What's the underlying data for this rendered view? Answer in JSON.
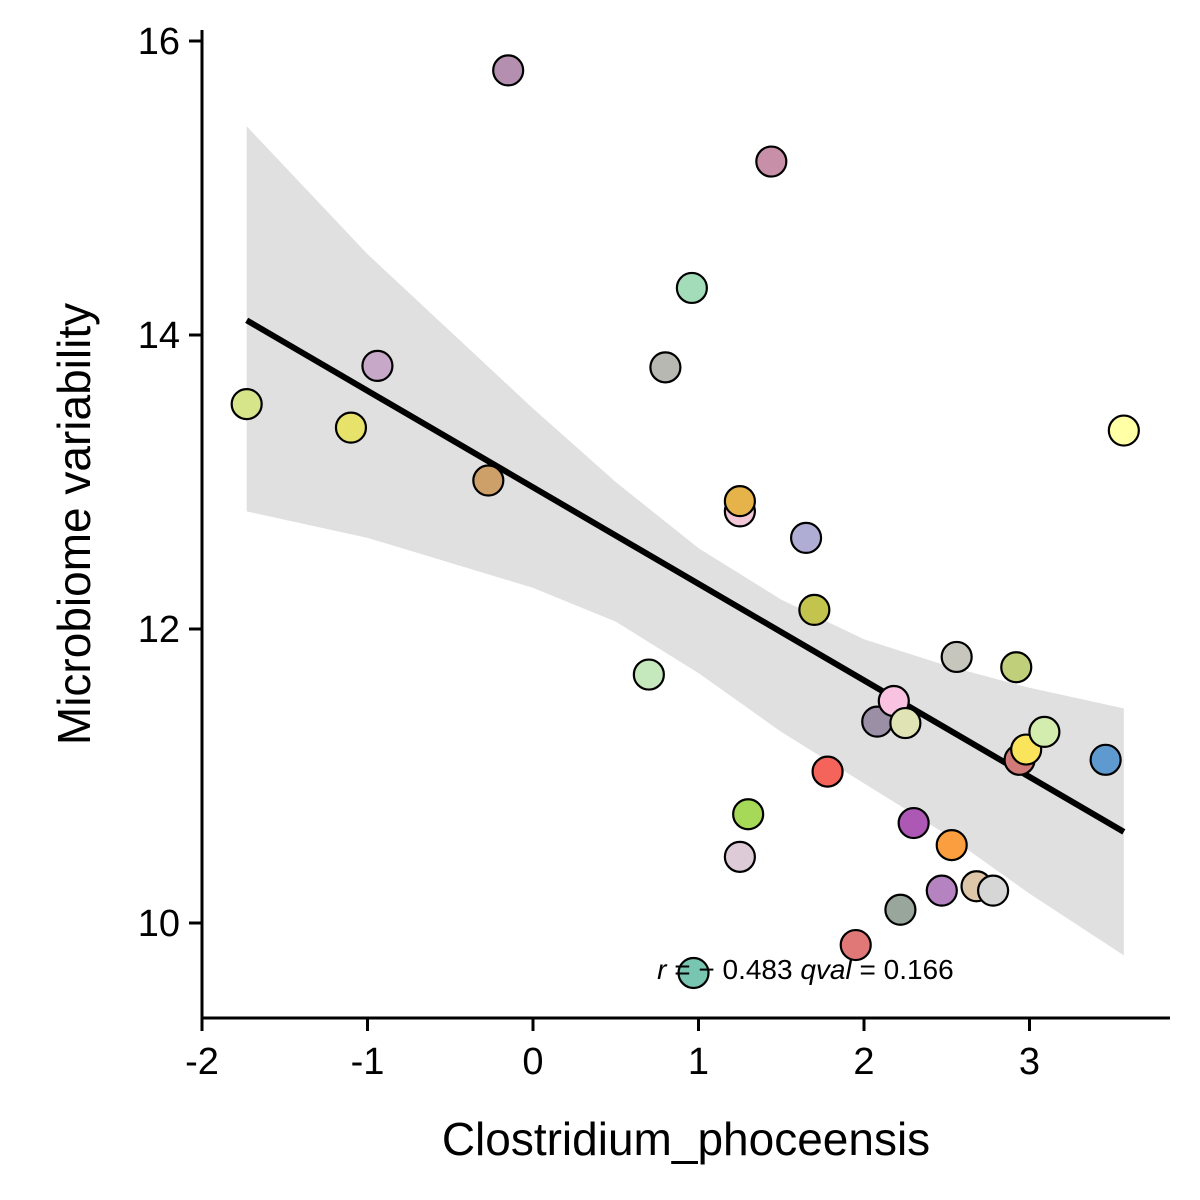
{
  "chart_data": {
    "type": "scatter",
    "title": "",
    "xlabel": "Clostridium_phoceensis",
    "ylabel": "Microbiome variability",
    "xlim": [
      -2,
      3.85
    ],
    "ylim": [
      9.35,
      16.1
    ],
    "xticks": [
      -2,
      -1,
      0,
      1,
      2,
      3
    ],
    "yticks": [
      10,
      12,
      14,
      16
    ],
    "grid": false,
    "legend": "none",
    "regression_line": {
      "x": [
        -1.73,
        3.57
      ],
      "y": [
        14.1,
        10.62
      ]
    },
    "confidence_band": {
      "x": [
        -1.73,
        -1.0,
        0.0,
        0.5,
        1.0,
        1.5,
        2.0,
        2.5,
        3.0,
        3.57
      ],
      "upper": [
        15.42,
        14.55,
        13.5,
        13.0,
        12.55,
        12.2,
        11.93,
        11.75,
        11.6,
        11.46
      ],
      "lower": [
        12.8,
        12.62,
        12.28,
        12.05,
        11.7,
        11.3,
        10.95,
        10.6,
        10.2,
        9.78
      ]
    },
    "points": [
      {
        "x": -1.73,
        "y": 13.53,
        "color": "#d6e58a"
      },
      {
        "x": -1.1,
        "y": 13.37,
        "color": "#e6e26a"
      },
      {
        "x": -0.94,
        "y": 13.79,
        "color": "#c8a8c8"
      },
      {
        "x": -0.27,
        "y": 13.01,
        "color": "#cda06a"
      },
      {
        "x": -0.15,
        "y": 15.8,
        "color": "#b48fb0"
      },
      {
        "x": 0.7,
        "y": 11.69,
        "color": "#c5e8bd"
      },
      {
        "x": 0.8,
        "y": 13.78,
        "color": "#b8b8b2"
      },
      {
        "x": 0.96,
        "y": 14.32,
        "color": "#a3dcb8"
      },
      {
        "x": 0.97,
        "y": 9.66,
        "color": "#78c6b2"
      },
      {
        "x": 1.25,
        "y": 12.8,
        "color": "#f2c8d8"
      },
      {
        "x": 1.25,
        "y": 12.87,
        "color": "#e6b34a"
      },
      {
        "x": 1.25,
        "y": 10.45,
        "color": "#ddcbd8"
      },
      {
        "x": 1.3,
        "y": 10.74,
        "color": "#a5d957"
      },
      {
        "x": 1.44,
        "y": 15.18,
        "color": "#c890a8"
      },
      {
        "x": 1.65,
        "y": 12.62,
        "color": "#afadd3"
      },
      {
        "x": 1.7,
        "y": 12.13,
        "color": "#c3c44e"
      },
      {
        "x": 1.78,
        "y": 11.03,
        "color": "#f4645a"
      },
      {
        "x": 1.95,
        "y": 9.85,
        "color": "#e07878"
      },
      {
        "x": 2.08,
        "y": 11.37,
        "color": "#9a8fa5"
      },
      {
        "x": 2.18,
        "y": 11.51,
        "color": "#f8c2e0"
      },
      {
        "x": 2.22,
        "y": 10.09,
        "color": "#98a69b"
      },
      {
        "x": 2.25,
        "y": 11.36,
        "color": "#e0e4b4"
      },
      {
        "x": 2.3,
        "y": 10.68,
        "color": "#ac58b4"
      },
      {
        "x": 2.47,
        "y": 10.22,
        "color": "#b584c0"
      },
      {
        "x": 2.53,
        "y": 10.53,
        "color": "#fa9e40"
      },
      {
        "x": 2.56,
        "y": 11.81,
        "color": "#c6c6bc"
      },
      {
        "x": 2.68,
        "y": 10.25,
        "color": "#dec6a8"
      },
      {
        "x": 2.78,
        "y": 10.22,
        "color": "#d6d6d6"
      },
      {
        "x": 2.92,
        "y": 11.74,
        "color": "#c0d07a"
      },
      {
        "x": 2.94,
        "y": 11.11,
        "color": "#d07b78"
      },
      {
        "x": 2.98,
        "y": 11.18,
        "color": "#fae45c"
      },
      {
        "x": 3.09,
        "y": 11.3,
        "color": "#d2edae"
      },
      {
        "x": 3.46,
        "y": 11.11,
        "color": "#5e9ad0"
      },
      {
        "x": 3.57,
        "y": 13.35,
        "color": "#ffffa6"
      }
    ],
    "annotation": {
      "r_label": "r",
      "r_text": " = − 0.483 ",
      "q_label": "qval",
      "q_text": " = 0.166",
      "x": 0.75,
      "y": 9.68
    },
    "colors": {
      "line": "#000000",
      "band": "#e0e0e0",
      "point_stroke": "#000000"
    }
  }
}
